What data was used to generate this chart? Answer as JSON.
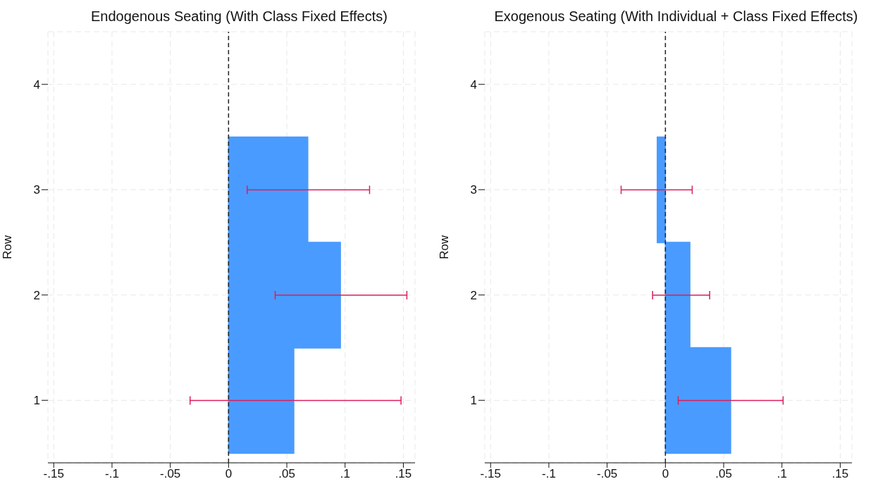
{
  "chart_data": [
    {
      "type": "bar",
      "orientation": "horizontal",
      "title": "Endogenous Seating (With Class Fixed Effects)",
      "ylabel": "Row",
      "categories": [
        "4",
        "3",
        "2",
        "1"
      ],
      "series": [
        {
          "color": "#4a9bff",
          "values": [
            0,
            0.068,
            0.096,
            0.056
          ],
          "errors": [
            [
              0,
              0
            ],
            [
              0.016,
              0.121
            ],
            [
              0.04,
              0.153
            ],
            [
              -0.033,
              0.148
            ]
          ]
        }
      ],
      "xlim": [
        -0.155,
        0.16
      ],
      "xticks": [
        {
          "value": -0.15,
          "label": "-.15"
        },
        {
          "value": -0.1,
          "label": "-.1"
        },
        {
          "value": -0.05,
          "label": "-.05"
        },
        0,
        {
          "value": 0.05,
          "label": ".05"
        },
        {
          "value": 0.1,
          "label": ".1"
        },
        {
          "value": 0.15,
          "label": ".15"
        }
      ],
      "grid": true,
      "ref_lines": [
        {
          "axis": "x",
          "value": 0,
          "color": "#222222",
          "line_style": "dashed"
        }
      ]
    },
    {
      "type": "bar",
      "orientation": "horizontal",
      "title": "Exogenous Seating (With Individual + Class Fixed Effects)",
      "ylabel": "Row",
      "categories": [
        "4",
        "3",
        "2",
        "1"
      ],
      "series": [
        {
          "color": "#4a9bff",
          "values": [
            0,
            -0.007,
            0.021,
            0.056
          ],
          "errors": [
            [
              0,
              0
            ],
            [
              -0.038,
              0.023
            ],
            [
              -0.011,
              0.038
            ],
            [
              0.011,
              0.101
            ]
          ]
        }
      ],
      "xlim": [
        -0.155,
        0.16
      ],
      "xticks": [
        {
          "value": -0.15,
          "label": "-.15"
        },
        {
          "value": -0.1,
          "label": "-.1"
        },
        {
          "value": -0.05,
          "label": "-.05"
        },
        0,
        {
          "value": 0.05,
          "label": ".05"
        },
        {
          "value": 0.1,
          "label": ".1"
        },
        {
          "value": 0.15,
          "label": ".15"
        }
      ],
      "grid": true,
      "ref_lines": [
        {
          "axis": "x",
          "value": 0,
          "color": "#222222",
          "line_style": "dashed"
        }
      ]
    }
  ]
}
